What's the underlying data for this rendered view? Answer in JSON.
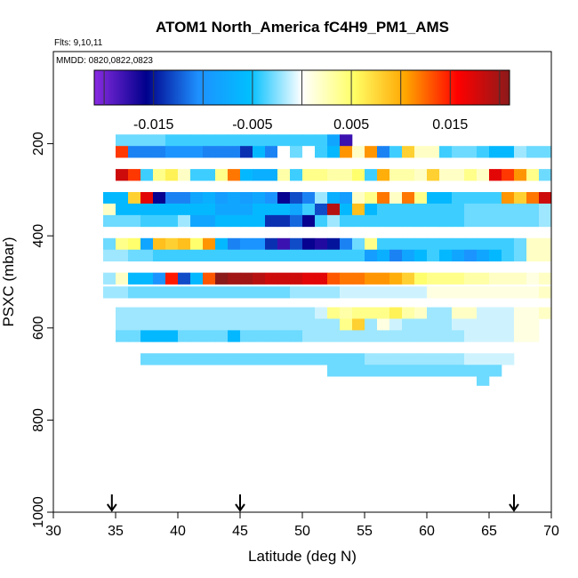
{
  "chart_data": {
    "type": "heatmap",
    "title": "ATOM1 North_America fC4H9_PM1_AMS",
    "flights_note": "Flts: 9,10,11",
    "dates_note": "MMDD: 0820,0822,0823",
    "xlabel": "Latitude (deg N)",
    "ylabel": "PSXC (mbar)",
    "xlim": [
      30,
      70
    ],
    "ylim": [
      1000,
      0
    ],
    "y_reversed": true,
    "x_ticks": [
      30,
      35,
      40,
      45,
      50,
      55,
      60,
      65,
      70
    ],
    "y_ticks": [
      200,
      400,
      600,
      800,
      1000
    ],
    "colorbar": {
      "range": [
        -0.021,
        0.021
      ],
      "labels": [
        "-0.015",
        "-0.005",
        "0.005",
        "0.015"
      ],
      "label_values": [
        -0.015,
        -0.005,
        0.005,
        0.015
      ],
      "tick_values": [
        -0.02,
        -0.015,
        -0.01,
        -0.005,
        0,
        0.005,
        0.01,
        0.015,
        0.02
      ],
      "colors": [
        "#8a2be2",
        "#00008b",
        "#1e90ff",
        "#00bfff",
        "#ffffff",
        "#ffff66",
        "#ffa500",
        "#ff0000",
        "#8b1a1a"
      ]
    },
    "arrows_at_latitude": [
      34.7,
      45,
      67
    ],
    "cell_width_deg": 1,
    "rows": [
      {
        "p": 180,
        "h": 25,
        "x0": 35,
        "values": [
          -0.003,
          -0.003,
          -0.003,
          -0.003,
          -0.004,
          -0.004,
          -0.004,
          -0.004,
          -0.004,
          -0.004,
          -0.004,
          -0.004,
          -0.004,
          -0.004,
          -0.004,
          -0.004,
          -0.004,
          -0.008,
          -0.018
        ]
      },
      {
        "p": 205,
        "h": 25,
        "x0": 35,
        "values": [
          0.014,
          -0.011,
          -0.011,
          -0.011,
          -0.01,
          -0.01,
          -0.01,
          -0.011,
          -0.011,
          -0.011,
          -0.014,
          -0.006,
          -0.011,
          0.0,
          -0.003,
          0.0,
          -0.004,
          -0.006,
          0.011,
          0.002,
          0.011,
          -0.011,
          -0.004,
          0.008,
          0.002,
          0.002,
          -0.004,
          -0.003,
          -0.003,
          -0.004,
          -0.006,
          -0.006,
          -0.002,
          -0.003,
          -0.003
        ]
      },
      {
        "p": 255,
        "h": 25,
        "x0": 35,
        "values": [
          0.018,
          0.014,
          -0.004,
          0.004,
          0.006,
          0.002,
          -0.004,
          -0.004,
          0.004,
          0.012,
          -0.006,
          -0.007,
          -0.007,
          0.003,
          -0.004,
          0.004,
          0.004,
          0.003,
          0.003,
          0.005,
          -0.004,
          0.01,
          0.003,
          0.003,
          0.002,
          0.008,
          0.002,
          0.002,
          0.004,
          0.002,
          0.017,
          0.014,
          0.011,
          0.004,
          -0.003
        ]
      },
      {
        "p": 305,
        "h": 25,
        "x0": 34,
        "values": [
          -0.006,
          -0.006,
          0.008,
          0.017,
          -0.016,
          -0.011,
          -0.011,
          -0.008,
          -0.007,
          -0.009,
          -0.008,
          -0.009,
          -0.008,
          -0.01,
          -0.016,
          -0.013,
          -0.011,
          -0.002,
          -0.007,
          -0.009,
          0.002,
          0.004,
          0.012,
          0.002,
          0.012,
          0.004,
          -0.006,
          -0.006,
          -0.004,
          -0.004,
          -0.004,
          -0.004,
          0.011,
          0.008,
          0.012,
          0.018
        ]
      },
      {
        "p": 330,
        "h": 25,
        "x0": 34,
        "values": [
          0.002,
          -0.006,
          -0.006,
          -0.006,
          -0.006,
          -0.006,
          -0.006,
          -0.006,
          -0.006,
          -0.008,
          -0.008,
          -0.008,
          -0.006,
          -0.006,
          -0.006,
          -0.008,
          -0.004,
          -0.013,
          0.019,
          -0.006,
          0.009,
          -0.006,
          -0.004,
          -0.004,
          -0.004,
          -0.004,
          -0.004,
          -0.004,
          -0.004,
          -0.003,
          -0.003,
          -0.003,
          -0.003,
          -0.003,
          -0.003,
          -0.002
        ]
      },
      {
        "p": 355,
        "h": 25,
        "x0": 34,
        "values": [
          -0.003,
          -0.003,
          -0.003,
          -0.004,
          -0.004,
          -0.004,
          -0.002,
          -0.008,
          -0.008,
          -0.006,
          -0.006,
          -0.006,
          -0.006,
          -0.014,
          -0.014,
          -0.012,
          -0.016,
          -0.004,
          -0.002,
          -0.004,
          -0.004,
          -0.004,
          -0.004,
          -0.004,
          -0.004,
          -0.004,
          -0.004,
          -0.004,
          -0.004,
          -0.003,
          -0.003,
          -0.003,
          -0.003,
          -0.003,
          -0.003,
          -0.002
        ]
      },
      {
        "p": 405,
        "h": 25,
        "x0": 34,
        "values": [
          -0.003,
          0.004,
          0.005,
          -0.008,
          0.009,
          0.008,
          0.009,
          0.005,
          0.011,
          -0.006,
          -0.011,
          -0.01,
          -0.01,
          -0.014,
          -0.018,
          -0.013,
          -0.016,
          -0.017,
          -0.015,
          -0.011,
          -0.003,
          0.004,
          -0.004,
          -0.004,
          -0.004,
          -0.004,
          -0.004,
          -0.004,
          -0.004,
          -0.004,
          -0.004,
          -0.004,
          -0.004,
          -0.003,
          0.002,
          0.002
        ]
      },
      {
        "p": 430,
        "h": 25,
        "x0": 34,
        "values": [
          -0.002,
          -0.002,
          -0.003,
          -0.003,
          -0.004,
          -0.004,
          -0.004,
          -0.004,
          -0.004,
          -0.004,
          -0.004,
          -0.004,
          -0.004,
          -0.004,
          -0.004,
          -0.004,
          -0.004,
          -0.004,
          -0.004,
          -0.004,
          -0.004,
          -0.009,
          -0.007,
          -0.011,
          -0.008,
          -0.006,
          -0.004,
          -0.006,
          -0.008,
          -0.01,
          -0.008,
          -0.006,
          -0.004,
          -0.003,
          0.002,
          0.002
        ]
      },
      {
        "p": 480,
        "h": 25,
        "x0": 34,
        "values": [
          -0.002,
          0.002,
          -0.006,
          -0.006,
          -0.01,
          0.015,
          -0.013,
          -0.006,
          0.013,
          0.021,
          0.02,
          0.02,
          0.019,
          0.018,
          0.018,
          0.018,
          0.017,
          0.017,
          0.013,
          0.012,
          0.012,
          0.011,
          0.011,
          0.01,
          0.008,
          0.005,
          0.004,
          0.004,
          0.004,
          0.003,
          0.003,
          0.002,
          0.002,
          0.002,
          0.001,
          0.002
        ]
      },
      {
        "p": 510,
        "h": 25,
        "x0": 34,
        "values": [
          -0.002,
          -0.002,
          -0.003,
          -0.003,
          -0.003,
          -0.003,
          -0.003,
          -0.003,
          -0.003,
          -0.003,
          -0.003,
          -0.003,
          -0.003,
          -0.003,
          -0.003,
          -0.002,
          -0.002,
          -0.002,
          -0.002,
          -0.001,
          -0.001,
          -0.001,
          -0.001,
          -0.001,
          -0.001,
          -0.001,
          0.001,
          0.001,
          0.001,
          0.001,
          0.001,
          0.001,
          0.001,
          0.001,
          0.001,
          0.002
        ]
      },
      {
        "p": 555,
        "h": 25,
        "x0": 35,
        "values": [
          -0.002,
          -0.002,
          -0.002,
          -0.002,
          -0.002,
          -0.002,
          -0.002,
          -0.002,
          -0.002,
          -0.002,
          -0.002,
          -0.002,
          -0.002,
          -0.002,
          -0.002,
          -0.002,
          -0.001,
          0.004,
          0.003,
          0.004,
          0.004,
          0.004,
          0.006,
          0.003,
          0.002,
          -0.002,
          -0.002,
          0.002,
          0.002,
          -0.001,
          -0.001,
          -0.001,
          0.001,
          0.001,
          0.002
        ]
      },
      {
        "p": 580,
        "h": 25,
        "x0": 35,
        "values": [
          -0.002,
          -0.002,
          -0.002,
          -0.002,
          -0.002,
          -0.002,
          -0.002,
          -0.002,
          -0.002,
          -0.002,
          -0.002,
          -0.002,
          -0.002,
          -0.002,
          -0.002,
          -0.002,
          -0.002,
          -0.002,
          0.004,
          0.008,
          -0.002,
          0.001,
          -0.001,
          -0.002,
          -0.002,
          -0.002,
          -0.002,
          -0.001,
          -0.001,
          -0.001,
          -0.001,
          -0.001,
          0.001,
          0.001
        ]
      },
      {
        "p": 605,
        "h": 25,
        "x0": 35,
        "values": [
          -0.003,
          -0.003,
          -0.006,
          -0.006,
          -0.006,
          -0.003,
          -0.003,
          -0.003,
          -0.003,
          -0.006,
          -0.003,
          -0.003,
          -0.003,
          -0.003,
          -0.003,
          -0.002,
          -0.002,
          -0.002,
          -0.002,
          -0.002,
          -0.002,
          -0.002,
          -0.002,
          -0.002,
          -0.002,
          -0.002,
          -0.002,
          -0.002,
          -0.001,
          -0.001,
          -0.001,
          -0.001,
          0.001,
          0.001
        ]
      },
      {
        "p": 655,
        "h": 25,
        "x0": 37,
        "values": [
          -0.003,
          -0.003,
          -0.003,
          -0.003,
          -0.003,
          -0.003,
          -0.003,
          -0.003,
          -0.003,
          -0.003,
          -0.003,
          -0.003,
          -0.003,
          -0.003,
          -0.003,
          -0.003,
          -0.003,
          -0.003,
          -0.002,
          -0.002,
          -0.002,
          -0.002,
          -0.002,
          -0.002,
          -0.002,
          -0.002,
          -0.001,
          -0.001,
          -0.001,
          -0.001
        ]
      },
      {
        "p": 680,
        "h": 25,
        "x0": 52,
        "values": [
          -0.003,
          -0.003,
          -0.003,
          -0.003,
          -0.003,
          -0.003,
          -0.003,
          -0.003,
          -0.003,
          -0.003,
          -0.003,
          -0.003,
          -0.003,
          -0.003
        ]
      },
      {
        "p": 705,
        "h": 20,
        "x0": 64,
        "values": [
          -0.003
        ]
      }
    ]
  }
}
